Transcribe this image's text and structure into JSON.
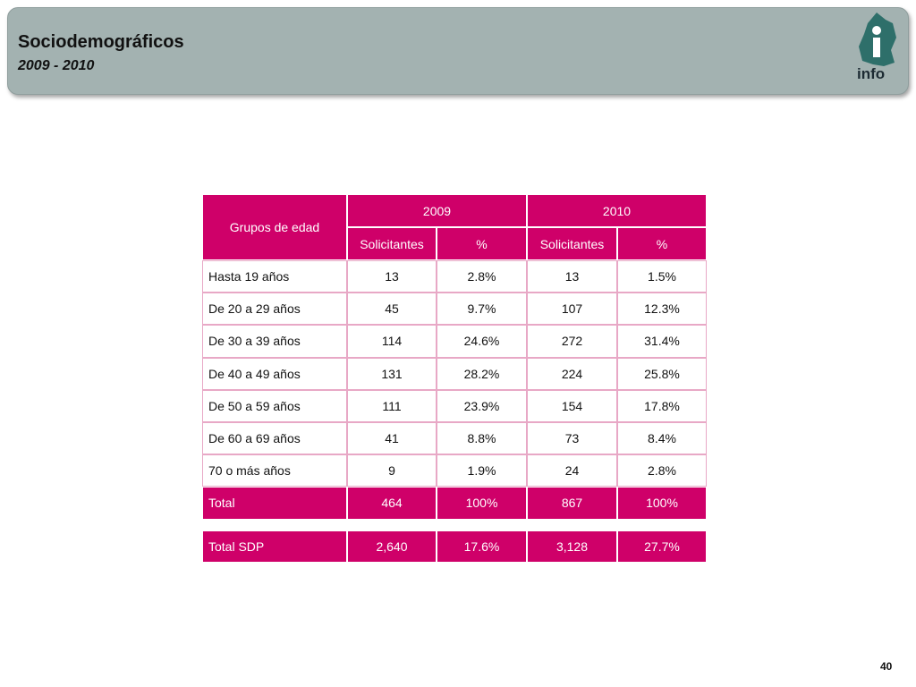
{
  "header": {
    "title": "Sociodemográficos",
    "subtitle": "2009 - 2010",
    "logo_text": "info"
  },
  "table": {
    "corner": "Grupos de edad",
    "years": [
      "2009",
      "2010"
    ],
    "subheaders": [
      "Solicitantes",
      "%",
      "Solicitantes",
      "%"
    ],
    "rows": [
      [
        "Hasta 19 años",
        "13",
        "2.8%",
        "13",
        "1.5%"
      ],
      [
        "De 20 a 29 años",
        "45",
        "9.7%",
        "107",
        "12.3%"
      ],
      [
        "De 30 a 39 años",
        "114",
        "24.6%",
        "272",
        "31.4%"
      ],
      [
        "De 40 a 49 años",
        "131",
        "28.2%",
        "224",
        "25.8%"
      ],
      [
        "De 50 a 59 años",
        "111",
        "23.9%",
        "154",
        "17.8%"
      ],
      [
        "De 60 a 69 años",
        "41",
        "8.8%",
        "73",
        "8.4%"
      ],
      [
        "70 o más años",
        "9",
        "1.9%",
        "24",
        "2.8%"
      ]
    ],
    "total": [
      "Total",
      "464",
      "100%",
      "867",
      "100%"
    ],
    "total_sdp": [
      "Total SDP",
      "2,640",
      "17.6%",
      "3,128",
      "27.7%"
    ]
  },
  "page_number": "40"
}
